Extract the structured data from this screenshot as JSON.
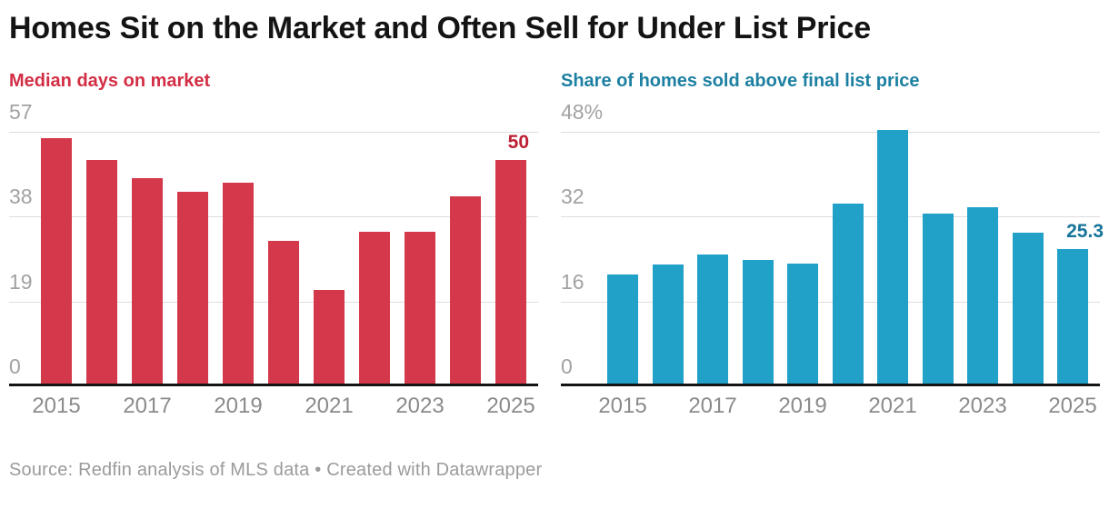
{
  "title": "Homes Sit on the Market and Often Sell for Under List Price",
  "footer": "Source: Redfin analysis of MLS data • Created with Datawrapper",
  "style": {
    "title_color": "#141414",
    "grid_color": "#dddddd",
    "axis_color": "#141414",
    "y_label_color": "#a2a2a2",
    "x_label_color": "#8b8b8b",
    "footer_color": "#9b9b9b",
    "background": "#ffffff"
  },
  "chart_data": [
    {
      "type": "bar",
      "title": "Median days on market",
      "title_color": "#d22e44",
      "bar_color": "#d4394b",
      "categories": [
        "2015",
        "2016",
        "2017",
        "2018",
        "2019",
        "2020",
        "2021",
        "2022",
        "2023",
        "2024",
        "2025"
      ],
      "values": [
        55,
        50,
        46,
        43,
        45,
        32,
        21,
        34,
        34,
        42,
        50
      ],
      "x_tick_labels": [
        "2015",
        "2017",
        "2019",
        "2021",
        "2023",
        "2025"
      ],
      "y_ticks": [
        57,
        38,
        19,
        0
      ],
      "y_tick_labels": [
        "57",
        "38",
        "19",
        "0"
      ],
      "ylim": [
        0,
        57
      ],
      "xlabel": "",
      "ylabel": "",
      "grid": true,
      "legend": false,
      "annotation": {
        "text": "50",
        "color": "#bb2133",
        "right_offset": 10
      }
    },
    {
      "type": "bar",
      "title": "Share of homes sold above final list price",
      "title_color": "#1d80a2",
      "bar_color": "#21a0c8",
      "categories": [
        "2015",
        "2016",
        "2017",
        "2018",
        "2019",
        "2020",
        "2021",
        "2022",
        "2023",
        "2024",
        "2025"
      ],
      "values": [
        20.6,
        22.5,
        24.4,
        23.4,
        22.7,
        34,
        47.9,
        32,
        33.2,
        28.4,
        25.3
      ],
      "x_tick_labels": [
        "2015",
        "2017",
        "2019",
        "2021",
        "2023",
        "2025"
      ],
      "y_ticks": [
        48,
        32,
        16,
        0
      ],
      "y_tick_labels": [
        "48%",
        "32",
        "16",
        "0"
      ],
      "ylim": [
        0,
        48
      ],
      "xlabel": "",
      "ylabel": "",
      "grid": true,
      "legend": false,
      "annotation": {
        "text": "25.3",
        "color": "#17749a",
        "right_offset": -4
      }
    }
  ]
}
